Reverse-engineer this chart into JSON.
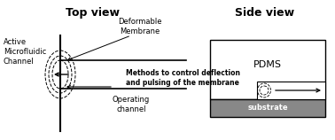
{
  "bg_color": "#ffffff",
  "title_top_view": "Top view",
  "title_side_view": "Side view",
  "label_active": "Active\nMicrofluidic\nChannel",
  "label_deformable": "Deformable\nMembrane",
  "label_methods": "Methods to control deflection\nand pulsing of the membrane",
  "label_operating": "Operating\nchannel",
  "label_pdms": "PDMS",
  "label_substrate": "substrate",
  "text_color": "#000000",
  "gray_dark": "#888888",
  "title_fontsize": 9,
  "label_fontsize": 6.0,
  "methods_fontsize": 5.5
}
